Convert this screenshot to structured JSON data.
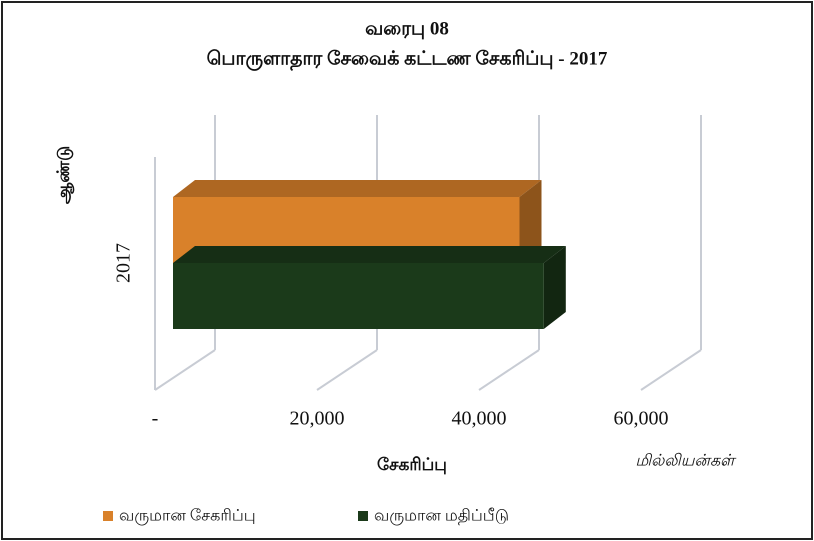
{
  "chart_data": {
    "type": "bar3d_horizontal",
    "title": "வரைபு 08",
    "subtitle": "பொருளாதார சேவைக் கட்டண சேகரிப்பு - 2017",
    "x_label": "சேகரிப்பு",
    "y_label": "ஆண்டு",
    "unit_label": "மில்லியன்கள்",
    "categories": [
      "2017"
    ],
    "series": [
      {
        "name": "வருமான சேகரிப்பு",
        "color": "#d9812a",
        "values": [
          45000
        ]
      },
      {
        "name": "வருமான மதிப்பீடு",
        "color": "#1b3a1a",
        "values": [
          48000
        ]
      }
    ],
    "xlim": [
      0,
      60000
    ],
    "xticks": [
      {
        "value": 0,
        "label": "-"
      },
      {
        "value": 20000,
        "label": "20,000"
      },
      {
        "value": 40000,
        "label": "40,000"
      },
      {
        "value": 60000,
        "label": "60,000"
      }
    ],
    "grid": true,
    "legend": "bottom"
  }
}
